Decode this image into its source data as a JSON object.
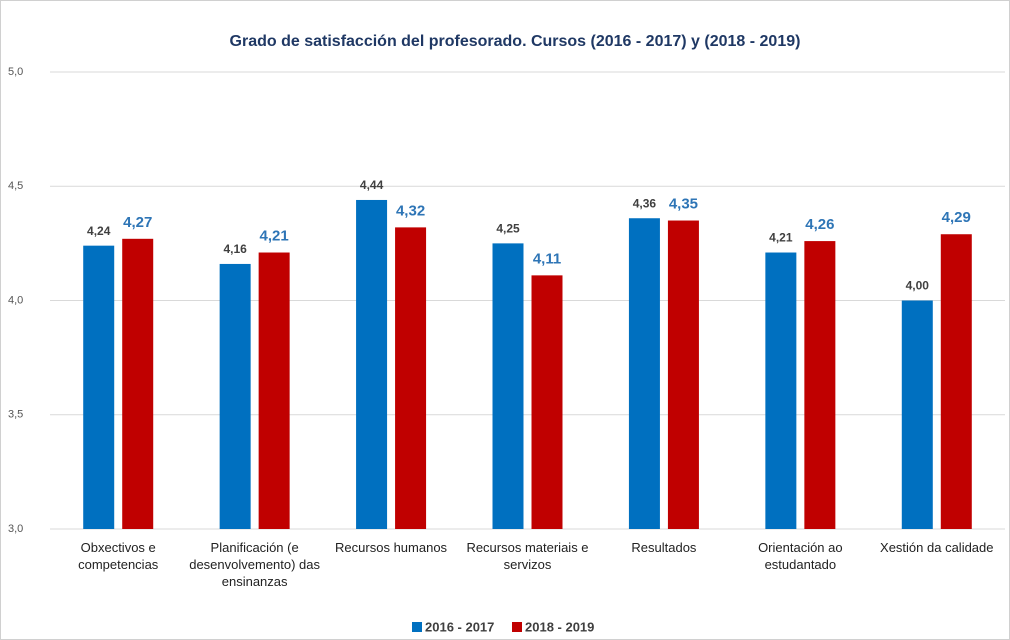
{
  "chart_data": {
    "type": "bar",
    "title": "Grado de satisfacción del profesorado. Cursos (2016 - 2017) y (2018 - 2019)",
    "categories": [
      "Obxectivos e competencias",
      "Planificación (e desenvolvemento) das ensinanzas",
      "Recursos humanos",
      "Recursos materiais e servizos",
      "Resultados",
      "Orientación ao estudantado",
      "Xestión da calidade"
    ],
    "series": [
      {
        "name": "2016 - 2017",
        "color": "#0070c0",
        "values": [
          4.24,
          4.16,
          4.44,
          4.25,
          4.36,
          4.21,
          4.0
        ],
        "value_labels": [
          "4,24",
          "4,16",
          "4,44",
          "4,25",
          "4,36",
          "4,21",
          "4,00"
        ]
      },
      {
        "name": "2018 - 2019",
        "color": "#c00000",
        "values": [
          4.27,
          4.21,
          4.32,
          4.11,
          4.35,
          4.26,
          4.29
        ],
        "value_labels": [
          "4,27",
          "4,21",
          "4,32",
          "4,11",
          "4,35",
          "4,26",
          "4,29"
        ]
      }
    ],
    "ylim": [
      3.0,
      5.0
    ],
    "yticks": [
      {
        "value": 3.0,
        "label": "3,0"
      },
      {
        "value": 3.5,
        "label": "3,5"
      },
      {
        "value": 4.0,
        "label": "4,0"
      },
      {
        "value": 4.5,
        "label": "4,5"
      },
      {
        "value": 5.0,
        "label": "5,0"
      }
    ],
    "grid": true,
    "legend": "bottom"
  }
}
